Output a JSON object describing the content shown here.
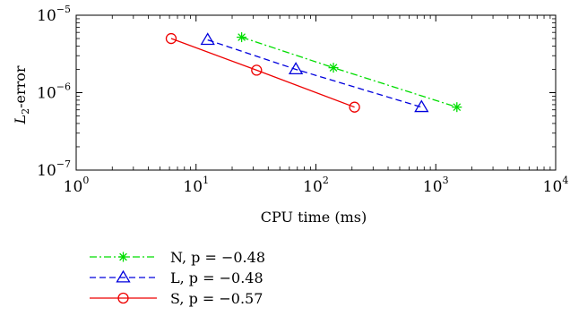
{
  "chart_data": {
    "type": "line",
    "xlabel": "CPU time (ms)",
    "ylabel_main": "L",
    "ylabel_sub": "2",
    "ylabel_rest": "-error",
    "xscale": "log",
    "yscale": "log",
    "xlim": [
      1,
      10000
    ],
    "ylim": [
      1e-07,
      1e-05
    ],
    "x_ticks": [
      {
        "base": "10",
        "exp": "0"
      },
      {
        "base": "10",
        "exp": "1"
      },
      {
        "base": "10",
        "exp": "2"
      },
      {
        "base": "10",
        "exp": "3"
      },
      {
        "base": "10",
        "exp": "4"
      }
    ],
    "y_ticks": [
      {
        "base": "10",
        "exp": "−5"
      },
      {
        "base": "10",
        "exp": "−6"
      },
      {
        "base": "10",
        "exp": "−7"
      }
    ],
    "grid": false,
    "legend_position": "below",
    "series": [
      {
        "name": "N, p = −0.48",
        "color": "#00dd00",
        "dash": "dashdot",
        "marker": "asterisk",
        "x": [
          24,
          140,
          1500
        ],
        "y": [
          5.2e-06,
          2.1e-06,
          6.5e-07
        ]
      },
      {
        "name": "L, p = −0.48",
        "color": "#0000dd",
        "dash": "dashed",
        "marker": "triangle",
        "x": [
          12.5,
          68,
          760
        ],
        "y": [
          4.8e-06,
          2e-06,
          6.5e-07
        ]
      },
      {
        "name": "S, p = −0.57",
        "color": "#ee0000",
        "dash": "solid",
        "marker": "circle",
        "x": [
          6.2,
          32,
          210
        ],
        "y": [
          5e-06,
          1.95e-06,
          6.5e-07
        ]
      }
    ]
  }
}
